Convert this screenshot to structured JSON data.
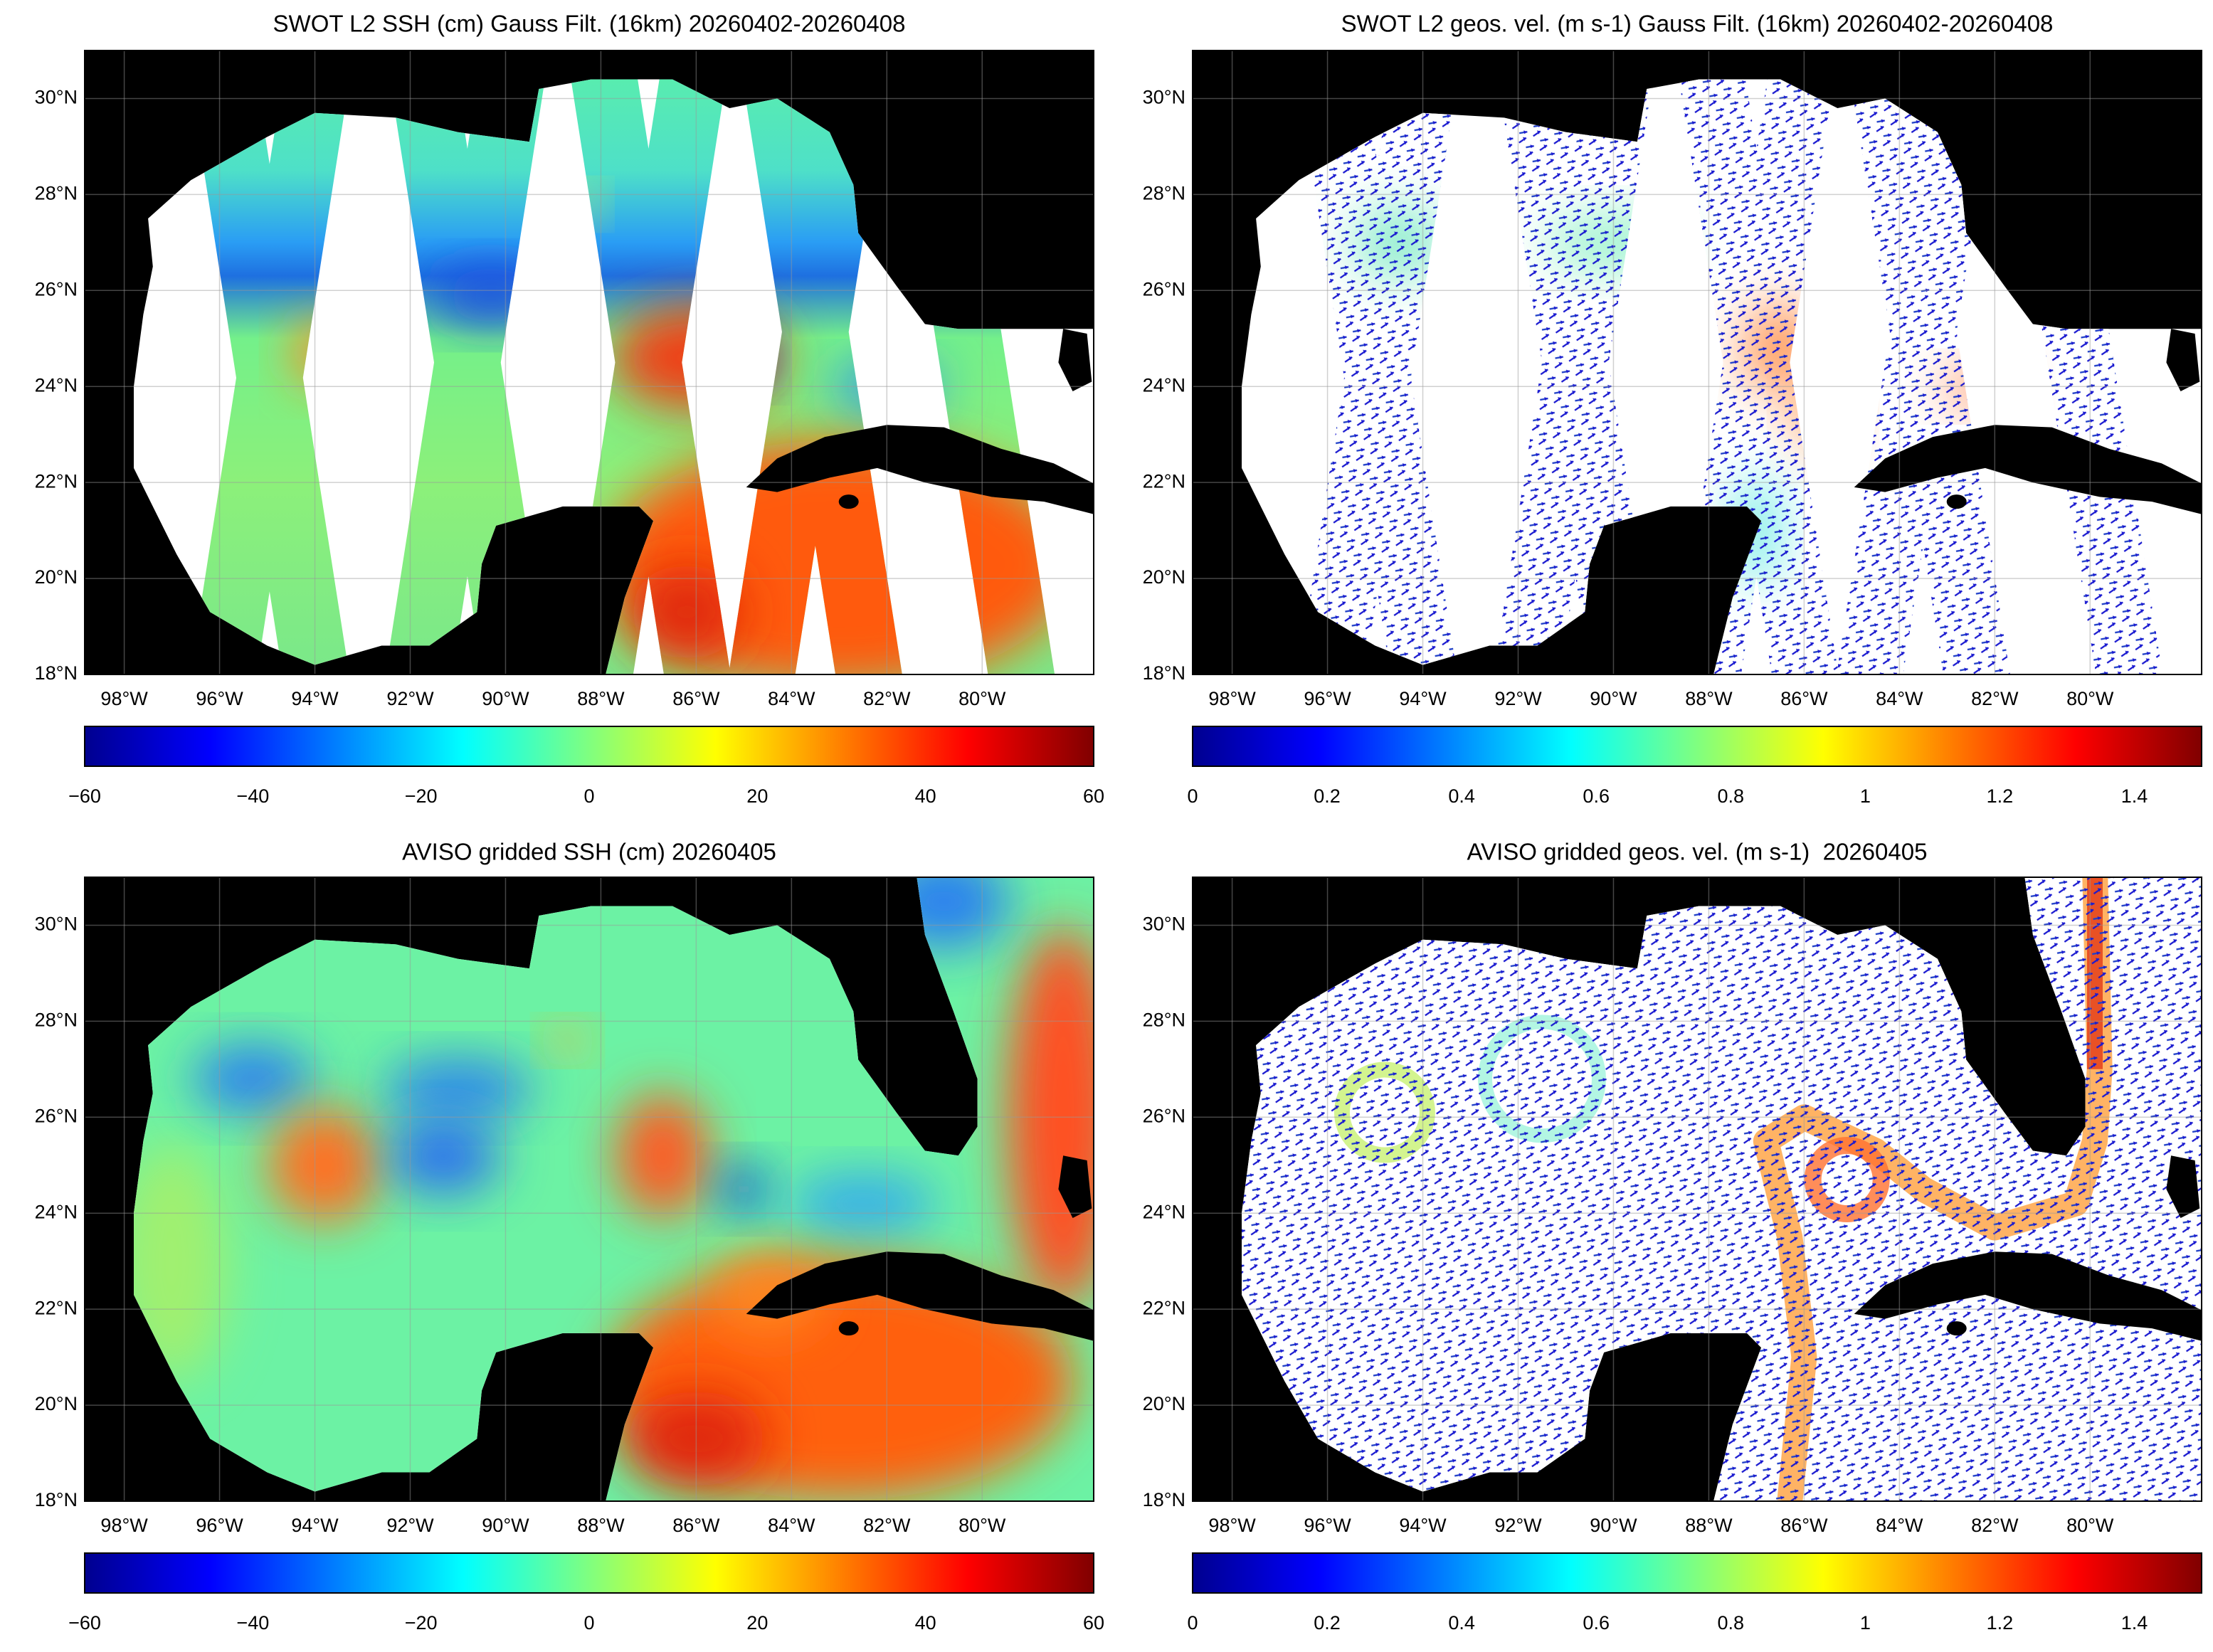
{
  "panels": [
    {
      "title": "SWOT L2 SSH (cm) Gauss Filt. (16km) 20260402-20260408",
      "xlim": [
        -98.83,
        -77.66
      ],
      "ylim": [
        18,
        31
      ],
      "xticks": [
        {
          "value": -98,
          "label": "98°W"
        },
        {
          "value": -96,
          "label": "96°W"
        },
        {
          "value": -94,
          "label": "94°W"
        },
        {
          "value": -92,
          "label": "92°W"
        },
        {
          "value": -90,
          "label": "90°W"
        },
        {
          "value": -88,
          "label": "88°W"
        },
        {
          "value": -86,
          "label": "86°W"
        },
        {
          "value": -84,
          "label": "84°W"
        },
        {
          "value": -82,
          "label": "82°W"
        },
        {
          "value": -80,
          "label": "80°W"
        }
      ],
      "yticks": [
        {
          "value": 18,
          "label": "18°N"
        },
        {
          "value": 20,
          "label": "20°N"
        },
        {
          "value": 22,
          "label": "22°N"
        },
        {
          "value": 24,
          "label": "24°N"
        },
        {
          "value": 26,
          "label": "26°N"
        },
        {
          "value": 28,
          "label": "28°N"
        },
        {
          "value": 30,
          "label": "30°N"
        }
      ],
      "clim": [
        -60,
        60
      ],
      "cticks": [
        {
          "value": -60,
          "label": "−60"
        },
        {
          "value": -40,
          "label": "−40"
        },
        {
          "value": -20,
          "label": "−20"
        },
        0,
        20,
        40,
        60
      ]
    },
    {
      "title": "SWOT L2 geos. vel. (m s-1) Gauss Filt. (16km) 20260402-20260408",
      "xlim": [
        -98.83,
        -77.66
      ],
      "ylim": [
        18,
        31
      ],
      "xticks": [
        {
          "value": -98,
          "label": "98°W"
        },
        {
          "value": -96,
          "label": "96°W"
        },
        {
          "value": -94,
          "label": "94°W"
        },
        {
          "value": -92,
          "label": "92°W"
        },
        {
          "value": -90,
          "label": "90°W"
        },
        {
          "value": -88,
          "label": "88°W"
        },
        {
          "value": -86,
          "label": "86°W"
        },
        {
          "value": -84,
          "label": "84°W"
        },
        {
          "value": -82,
          "label": "82°W"
        },
        {
          "value": -80,
          "label": "80°W"
        }
      ],
      "yticks": [
        {
          "value": 18,
          "label": "18°N"
        },
        {
          "value": 20,
          "label": "20°N"
        },
        {
          "value": 22,
          "label": "22°N"
        },
        {
          "value": 24,
          "label": "24°N"
        },
        {
          "value": 26,
          "label": "26°N"
        },
        {
          "value": 28,
          "label": "28°N"
        },
        {
          "value": 30,
          "label": "30°N"
        }
      ],
      "clim": [
        0,
        1.5
      ],
      "cticks": [
        0,
        0.2,
        0.4,
        0.6,
        0.8,
        1,
        1.2,
        1.4
      ]
    },
    {
      "title": "AVISO gridded SSH (cm) 20260405",
      "xlim": [
        -98.83,
        -77.66
      ],
      "ylim": [
        18,
        31
      ],
      "xticks": [
        {
          "value": -98,
          "label": "98°W"
        },
        {
          "value": -96,
          "label": "96°W"
        },
        {
          "value": -94,
          "label": "94°W"
        },
        {
          "value": -92,
          "label": "92°W"
        },
        {
          "value": -90,
          "label": "90°W"
        },
        {
          "value": -88,
          "label": "88°W"
        },
        {
          "value": -86,
          "label": "86°W"
        },
        {
          "value": -84,
          "label": "84°W"
        },
        {
          "value": -82,
          "label": "82°W"
        },
        {
          "value": -80,
          "label": "80°W"
        }
      ],
      "yticks": [
        {
          "value": 18,
          "label": "18°N"
        },
        {
          "value": 20,
          "label": "20°N"
        },
        {
          "value": 22,
          "label": "22°N"
        },
        {
          "value": 24,
          "label": "24°N"
        },
        {
          "value": 26,
          "label": "26°N"
        },
        {
          "value": 28,
          "label": "28°N"
        },
        {
          "value": 30,
          "label": "30°N"
        }
      ],
      "clim": [
        -60,
        60
      ],
      "cticks": [
        {
          "value": -60,
          "label": "−60"
        },
        {
          "value": -40,
          "label": "−40"
        },
        {
          "value": -20,
          "label": "−20"
        },
        0,
        20,
        40,
        60
      ]
    },
    {
      "title": "AVISO gridded geos. vel. (m s-1)  20260405",
      "xlim": [
        -98.83,
        -77.66
      ],
      "ylim": [
        18,
        31
      ],
      "xticks": [
        {
          "value": -98,
          "label": "98°W"
        },
        {
          "value": -96,
          "label": "96°W"
        },
        {
          "value": -94,
          "label": "94°W"
        },
        {
          "value": -92,
          "label": "92°W"
        },
        {
          "value": -90,
          "label": "90°W"
        },
        {
          "value": -88,
          "label": "88°W"
        },
        {
          "value": -86,
          "label": "86°W"
        },
        {
          "value": -84,
          "label": "84°W"
        },
        {
          "value": -82,
          "label": "82°W"
        },
        {
          "value": -80,
          "label": "80°W"
        }
      ],
      "yticks": [
        {
          "value": 18,
          "label": "18°N"
        },
        {
          "value": 20,
          "label": "20°N"
        },
        {
          "value": 22,
          "label": "22°N"
        },
        {
          "value": 24,
          "label": "24°N"
        },
        {
          "value": 26,
          "label": "26°N"
        },
        {
          "value": 28,
          "label": "28°N"
        },
        {
          "value": 30,
          "label": "30°N"
        }
      ],
      "clim": [
        0,
        1.5
      ],
      "cticks": [
        0,
        0.2,
        0.4,
        0.6,
        0.8,
        1,
        1.2,
        1.4
      ]
    }
  ]
}
